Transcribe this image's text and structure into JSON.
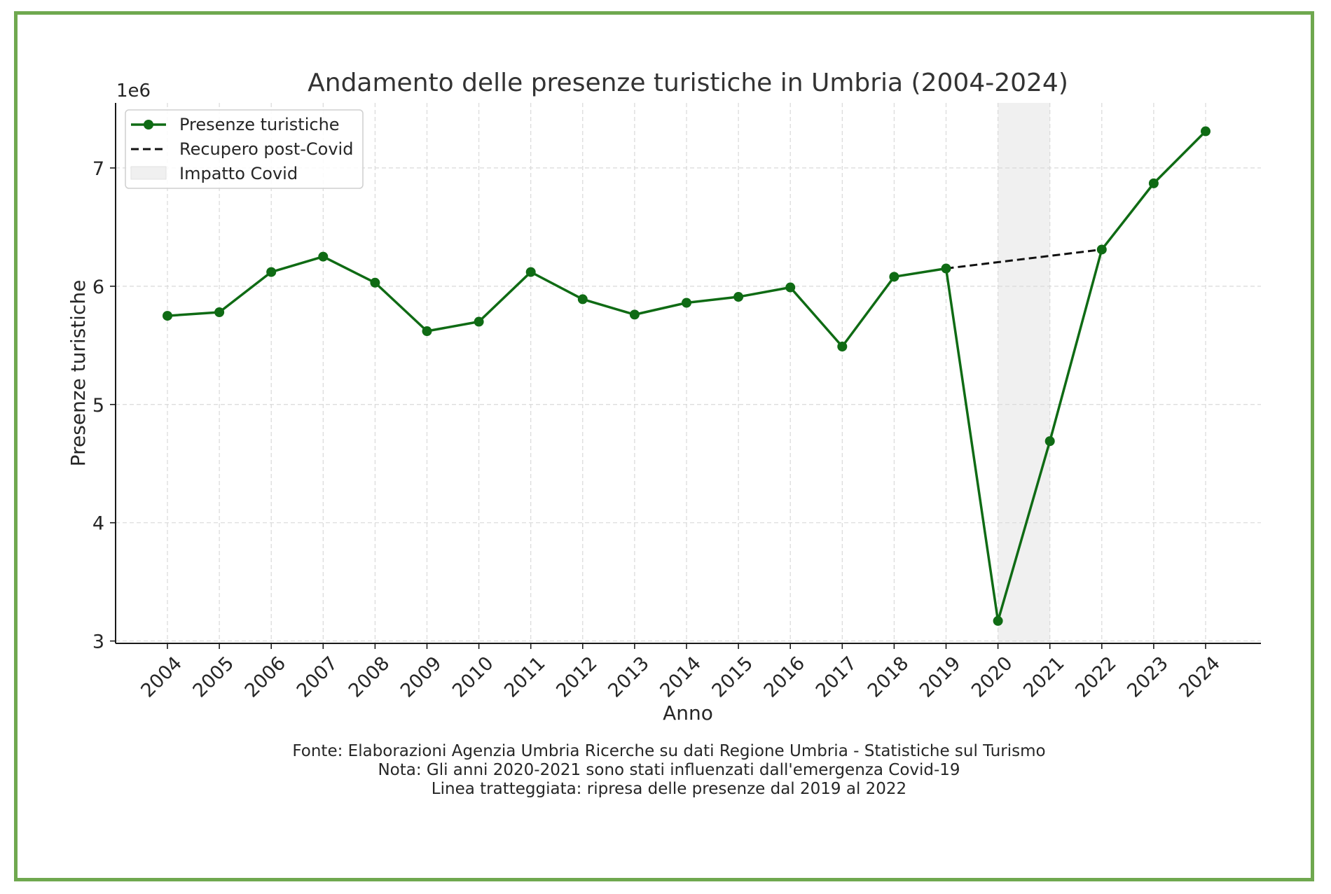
{
  "chart_data": {
    "type": "line",
    "title": "Andamento delle presenze turistiche in Umbria (2004-2024)",
    "xlabel": "Anno",
    "ylabel": "Presenze turistiche",
    "y_offset_label": "1e6",
    "x": [
      "2004",
      "2005",
      "2006",
      "2007",
      "2008",
      "2009",
      "2010",
      "2011",
      "2012",
      "2013",
      "2014",
      "2015",
      "2016",
      "2017",
      "2018",
      "2019",
      "2020",
      "2021",
      "2022",
      "2023",
      "2024"
    ],
    "ylim": [
      2.98,
      7.55
    ],
    "yticks": [
      3,
      4,
      5,
      6,
      7
    ],
    "grid": true,
    "legend_position": "top-left",
    "series": [
      {
        "name": "Presenze turistiche",
        "style": "solid-with-markers",
        "color": "#0f6b14",
        "values": [
          5.75,
          5.78,
          6.12,
          6.25,
          6.03,
          5.62,
          5.7,
          6.12,
          5.89,
          5.76,
          5.86,
          5.91,
          5.99,
          5.49,
          6.08,
          6.15,
          3.17,
          4.69,
          6.31,
          6.87,
          7.31
        ]
      },
      {
        "name": "Recupero post-Covid",
        "style": "dashed",
        "color": "#111111",
        "x": [
          "2019",
          "2022"
        ],
        "values": [
          6.15,
          6.31
        ]
      }
    ],
    "shaded_region": {
      "name": "Impatto Covid",
      "from": "2020",
      "to": "2021",
      "color": "#f0f0f0"
    }
  },
  "caption": {
    "line1": "Fonte: Elaborazioni Agenzia Umbria Ricerche su dati Regione Umbria - Statistiche sul Turismo",
    "line2": "Nota: Gli anni 2020-2021 sono stati influenzati dall'emergenza Covid-19",
    "line3": "Linea tratteggiata: ripresa delle presenze dal 2019 al 2022"
  },
  "colors": {
    "frame_border": "#6fa84f",
    "main_line": "#0f6b14",
    "dashed_line": "#111111",
    "covid_band": "#f0f0f0"
  }
}
